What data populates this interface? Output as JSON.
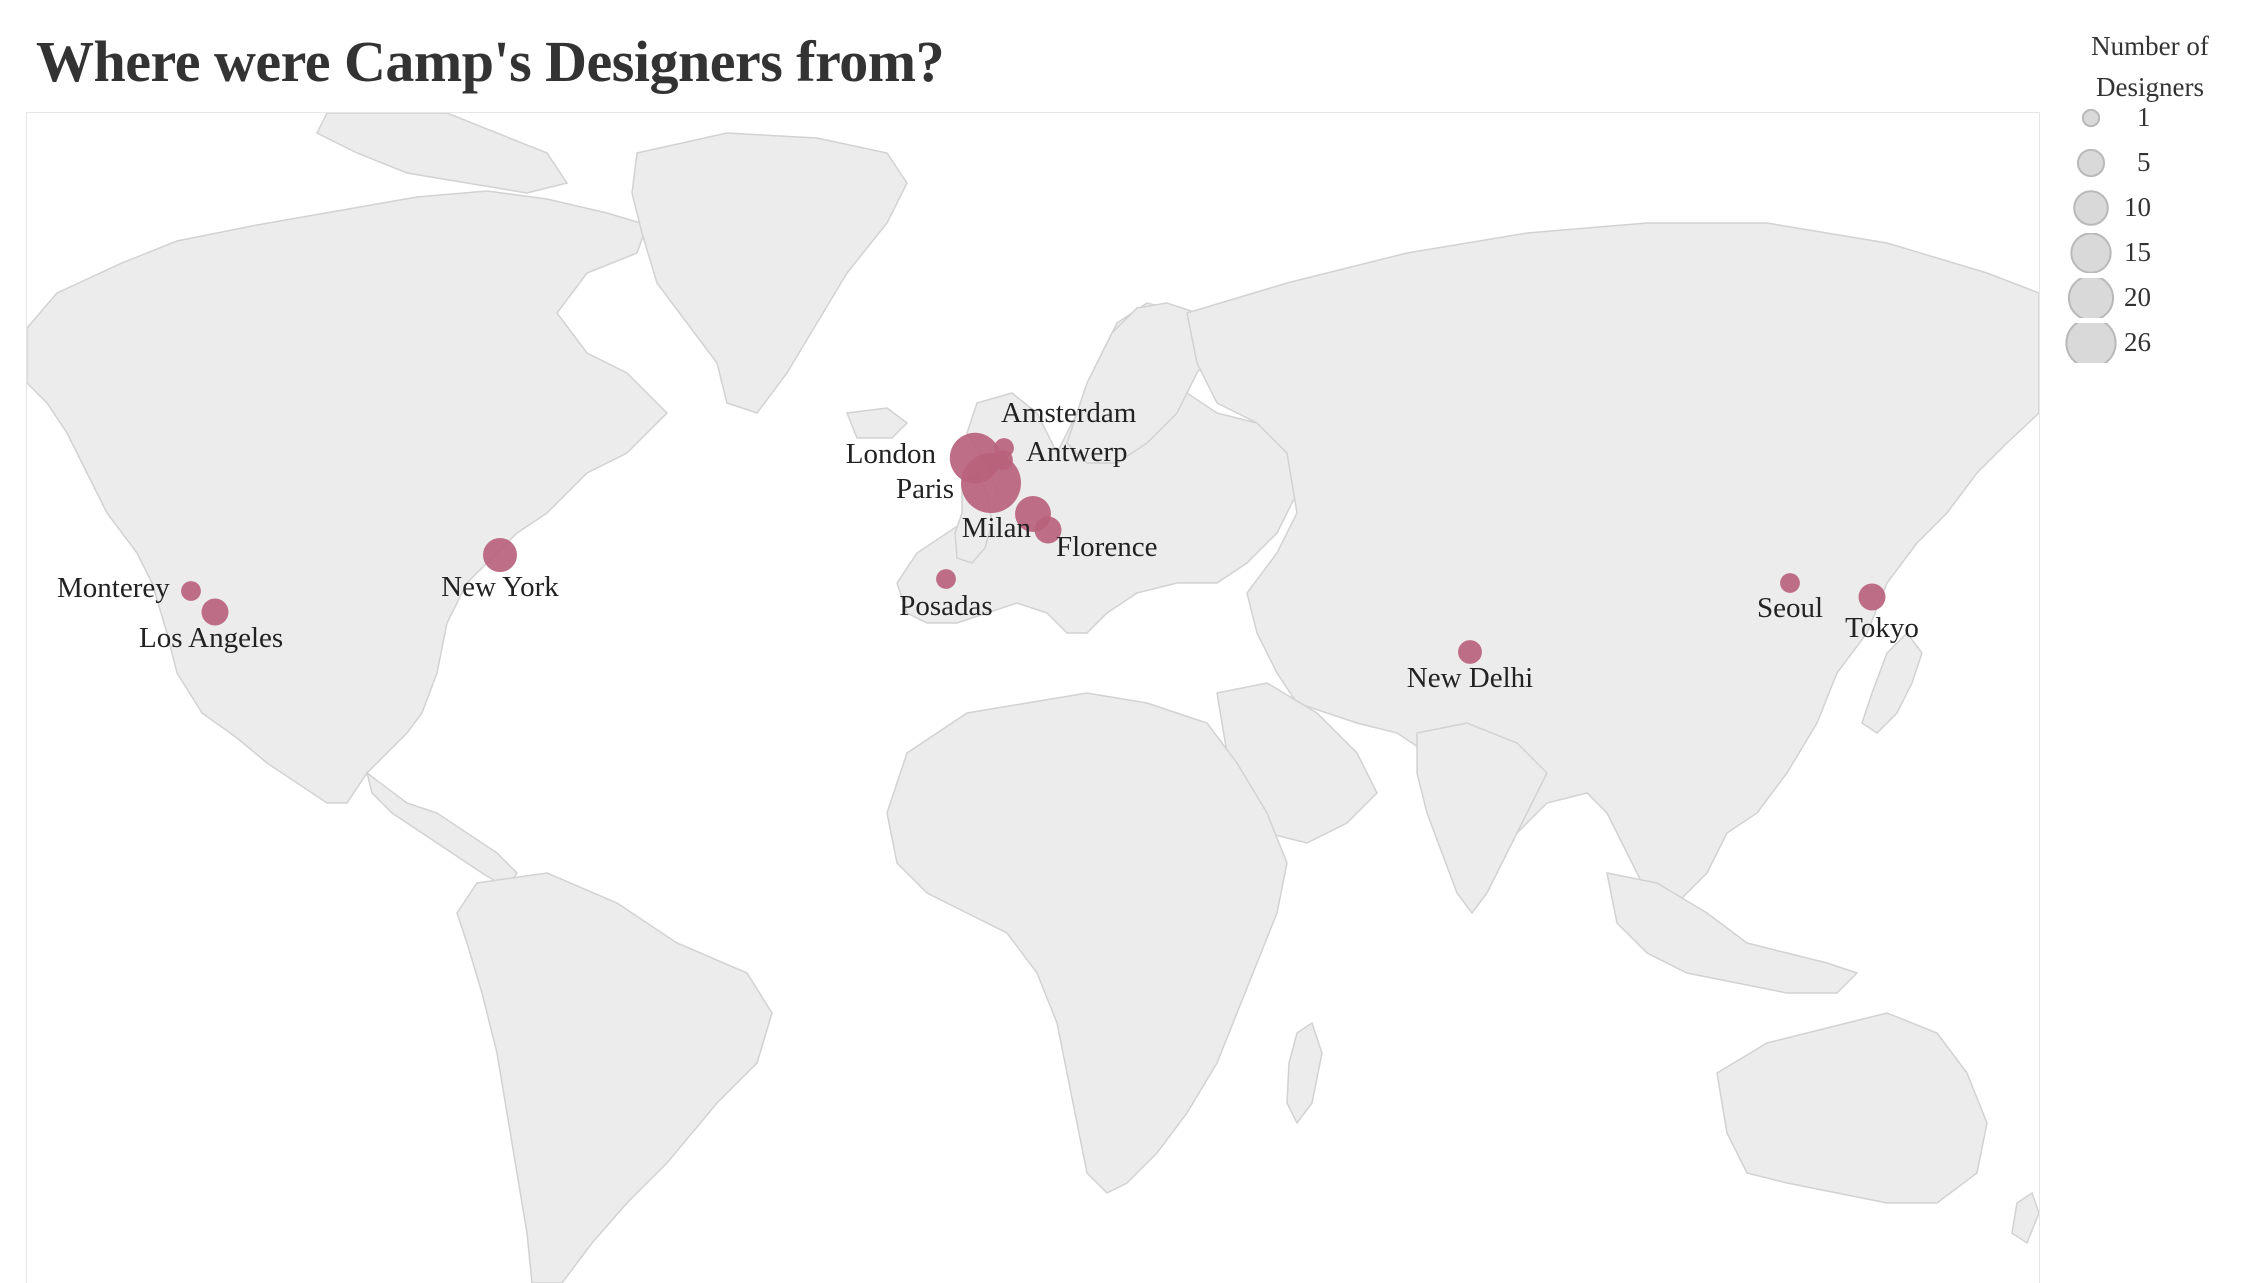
{
  "title": "Where were Camp's Designers from?",
  "legend": {
    "title_line1": "Number of",
    "title_line2": "Designers",
    "entries": [
      "1",
      "5",
      "10",
      "15",
      "20",
      "26"
    ]
  },
  "colors": {
    "land": "#ececec",
    "land_border": "#d2d2d2",
    "marker": "#b8627c",
    "legend_circle": "#d9d9d9",
    "legend_circle_stroke": "#b9b9b9"
  },
  "cities": [
    {
      "name": "Monterey",
      "designers": 1
    },
    {
      "name": "Los Angeles",
      "designers": 3
    },
    {
      "name": "New York",
      "designers": 6
    },
    {
      "name": "London",
      "designers": 17
    },
    {
      "name": "Paris",
      "designers": 26
    },
    {
      "name": "Amsterdam",
      "designers": 1
    },
    {
      "name": "Antwerp",
      "designers": 1
    },
    {
      "name": "Milan",
      "designers": 7
    },
    {
      "name": "Florence",
      "designers": 3
    },
    {
      "name": "Posadas",
      "designers": 1
    },
    {
      "name": "New Delhi",
      "designers": 2
    },
    {
      "name": "Seoul",
      "designers": 1
    },
    {
      "name": "Tokyo",
      "designers": 3
    }
  ]
}
